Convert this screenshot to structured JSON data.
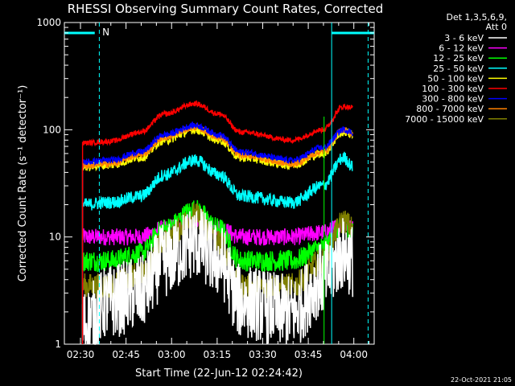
{
  "chart_data": {
    "type": "line",
    "title": "RHESSI Observing Summary Count Rates, Corrected",
    "xlabel": "Start Time (22-Jun-12 02:24:42)",
    "ylabel": "Corrected Count Rate (s⁻¹ detector⁻¹)",
    "y_scale": "log",
    "ylim": [
      1,
      1000
    ],
    "xlim_minutes": [
      0,
      102
    ],
    "x_ticks": [
      "02:30",
      "02:45",
      "03:00",
      "03:15",
      "03:30",
      "03:45",
      "04:00"
    ],
    "y_ticks": [
      "1",
      "10",
      "100",
      "1000"
    ],
    "legend_header": [
      "Det 1,3,5,6,9,",
      "Att 0"
    ],
    "legend_placement": "top-right, outside plot",
    "annotation": "N",
    "footer": "22-Oct-2021 21:05",
    "series": [
      {
        "name": "3 - 6 keV",
        "color": "#ffffff",
        "values_by_minute": [
          [
            6,
            1.5
          ],
          [
            15,
            2.5
          ],
          [
            25,
            3
          ],
          [
            33,
            6
          ],
          [
            43,
            9
          ],
          [
            51,
            6
          ],
          [
            58,
            2.5
          ],
          [
            75,
            2
          ],
          [
            85,
            4
          ],
          [
            92,
            7
          ],
          [
            95,
            6
          ]
        ]
      },
      {
        "name": "6 - 12 keV",
        "color": "#ff00ff",
        "values_by_minute": [
          [
            6,
            10
          ],
          [
            15,
            10
          ],
          [
            25,
            10
          ],
          [
            33,
            12
          ],
          [
            43,
            15
          ],
          [
            51,
            12
          ],
          [
            58,
            10
          ],
          [
            75,
            10
          ],
          [
            85,
            11
          ],
          [
            92,
            13
          ],
          [
            95,
            12
          ]
        ]
      },
      {
        "name": "12 - 25 keV",
        "color": "#00ff00",
        "values_by_minute": [
          [
            6,
            6
          ],
          [
            15,
            6
          ],
          [
            25,
            7
          ],
          [
            33,
            12
          ],
          [
            43,
            18
          ],
          [
            51,
            12
          ],
          [
            58,
            6
          ],
          [
            75,
            6
          ],
          [
            85,
            8
          ],
          [
            92,
            13
          ],
          [
            95,
            11
          ]
        ]
      },
      {
        "name": "25 - 50 keV",
        "color": "#00ffff",
        "values_by_minute": [
          [
            6,
            20
          ],
          [
            15,
            21
          ],
          [
            25,
            24
          ],
          [
            33,
            38
          ],
          [
            43,
            52
          ],
          [
            51,
            38
          ],
          [
            58,
            24
          ],
          [
            75,
            21
          ],
          [
            85,
            30
          ],
          [
            92,
            55
          ],
          [
            95,
            45
          ]
        ]
      },
      {
        "name": "50 - 100 keV",
        "color": "#ffff00",
        "values_by_minute": [
          [
            6,
            45
          ],
          [
            15,
            47
          ],
          [
            25,
            55
          ],
          [
            33,
            80
          ],
          [
            43,
            100
          ],
          [
            51,
            80
          ],
          [
            58,
            55
          ],
          [
            75,
            47
          ],
          [
            85,
            60
          ],
          [
            92,
            95
          ],
          [
            95,
            90
          ]
        ]
      },
      {
        "name": "100 - 300 keV",
        "color": "#ff0000",
        "values_by_minute": [
          [
            6,
            75
          ],
          [
            15,
            78
          ],
          [
            25,
            95
          ],
          [
            33,
            140
          ],
          [
            43,
            175
          ],
          [
            51,
            140
          ],
          [
            58,
            95
          ],
          [
            75,
            80
          ],
          [
            85,
            100
          ],
          [
            92,
            165
          ],
          [
            95,
            160
          ]
        ]
      },
      {
        "name": "300 - 800 keV",
        "color": "#0000ff",
        "values_by_minute": [
          [
            6,
            50
          ],
          [
            15,
            52
          ],
          [
            25,
            62
          ],
          [
            33,
            90
          ],
          [
            43,
            110
          ],
          [
            51,
            90
          ],
          [
            58,
            62
          ],
          [
            75,
            52
          ],
          [
            85,
            68
          ],
          [
            92,
            100
          ],
          [
            95,
            95
          ]
        ]
      },
      {
        "name": "800 - 7000 keV",
        "color": "#ff8000",
        "values_by_minute": [
          [
            6,
            46
          ],
          [
            15,
            48
          ],
          [
            25,
            58
          ],
          [
            33,
            85
          ],
          [
            43,
            105
          ],
          [
            51,
            85
          ],
          [
            58,
            58
          ],
          [
            75,
            48
          ],
          [
            85,
            62
          ],
          [
            92,
            100
          ],
          [
            95,
            92
          ]
        ]
      },
      {
        "name": "7000 - 15000 keV",
        "color": "#808000",
        "values_by_minute": [
          [
            6,
            3.5
          ],
          [
            15,
            3.5
          ],
          [
            25,
            4.5
          ],
          [
            33,
            9
          ],
          [
            43,
            16
          ],
          [
            51,
            9
          ],
          [
            58,
            3.5
          ],
          [
            75,
            3.5
          ],
          [
            85,
            6
          ],
          [
            92,
            14
          ],
          [
            95,
            12
          ]
        ]
      }
    ]
  }
}
